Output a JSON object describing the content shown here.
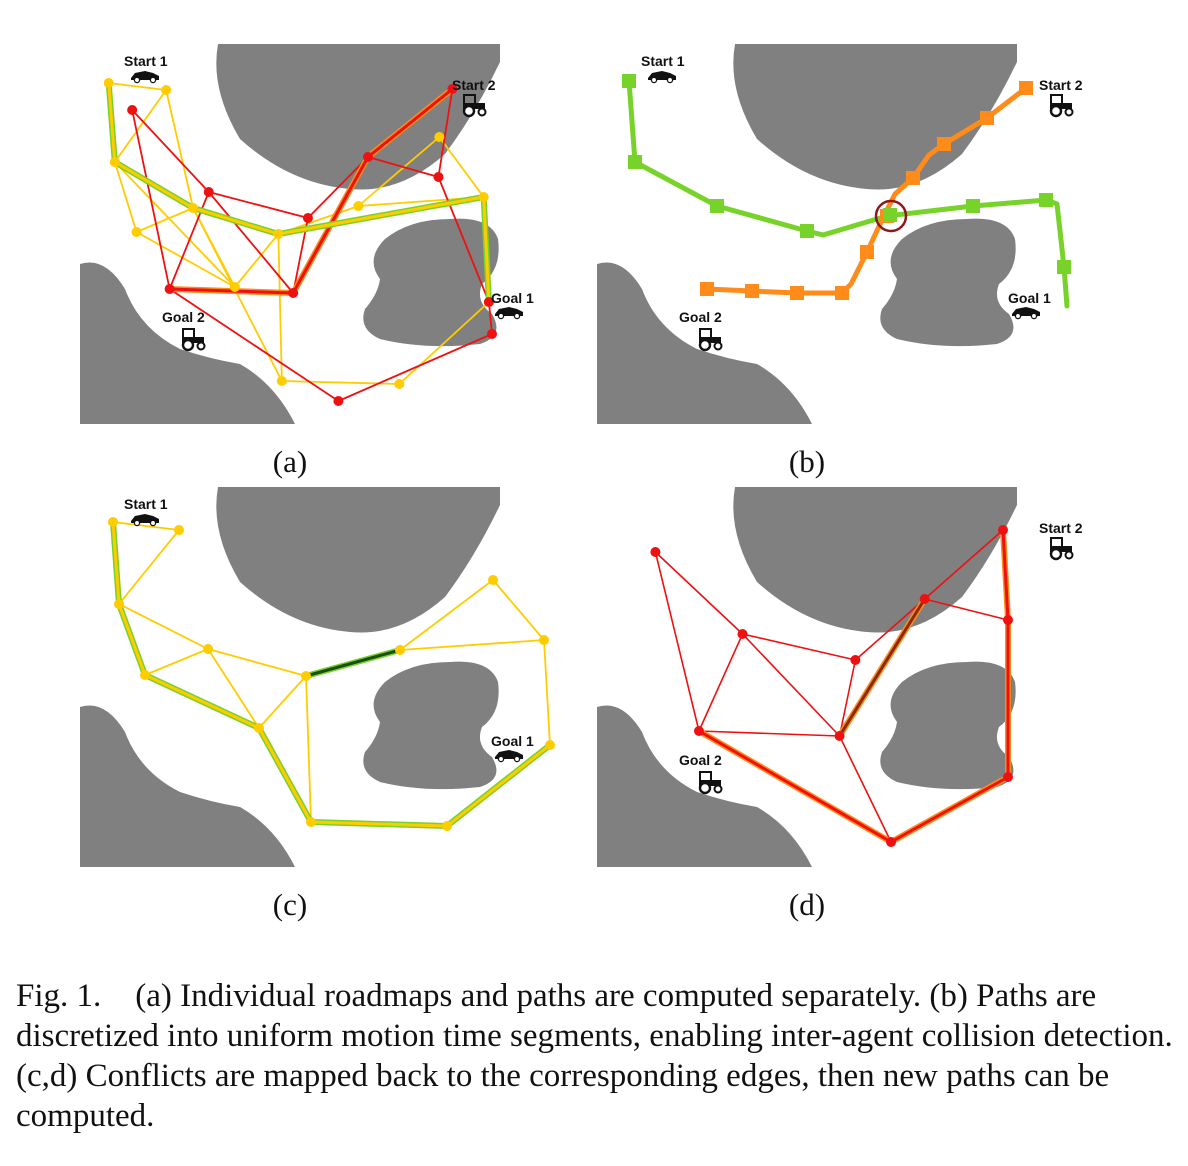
{
  "figure": {
    "subfigure_labels": [
      "(a)",
      "(b)",
      "(c)",
      "(d)"
    ],
    "map_labels": {
      "start1": "Start 1",
      "start2": "Start 2",
      "goal1": "Goal 1",
      "goal2": "Goal 2"
    },
    "colors": {
      "obstacle": "#808080",
      "roadmap_agent1": "#ffcc00",
      "roadmap_agent2": "#ee1111",
      "path_agent1": "#77d22a",
      "path_agent2": "#ff8c1a",
      "conflict_ring": "#8b1a1a",
      "blocked_edge_agent1": "#1b4d16",
      "blocked_edge_agent2": "#8b2a12"
    }
  },
  "caption": {
    "lead": "Fig. 1.",
    "text": "(a) Individual roadmaps and paths are computed separately. (b) Paths are discretized into uniform motion time segments, enabling inter-agent collision detection. (c,d) Conflicts are mapped back to the corresponding edges, then new paths can be computed."
  }
}
